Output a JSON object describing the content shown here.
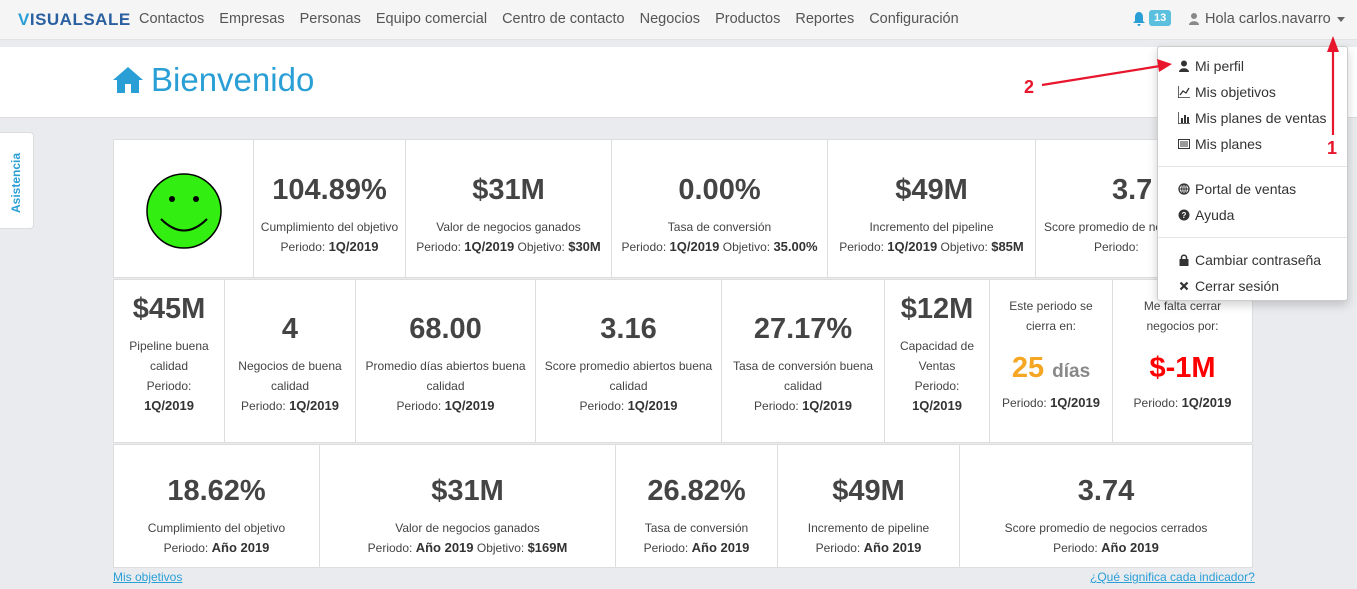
{
  "navbar": {
    "logo_v": "V",
    "logo_rest": "ISUALSALE",
    "items": [
      "Contactos",
      "Empresas",
      "Personas",
      "Equipo comercial",
      "Centro de contacto",
      "Negocios",
      "Productos",
      "Reportes",
      "Configuración"
    ],
    "notification_count": "13",
    "user_greeting": "Hola carlos.navarro"
  },
  "page": {
    "title": "Bienvenido",
    "side_tab": "Asistencia"
  },
  "row1": [
    {
      "value": "104.89%",
      "label": "Cumplimiento del objetivo",
      "period_label": "Periodo:",
      "period": "1Q/2019",
      "target_label": "",
      "target": ""
    },
    {
      "value": "$31M",
      "label": "Valor de negocios ganados",
      "period_label": "Periodo:",
      "period": "1Q/2019",
      "target_label": "Objetivo:",
      "target": "$30M"
    },
    {
      "value": "0.00%",
      "label": "Tasa de conversión",
      "period_label": "Periodo:",
      "period": "1Q/2019",
      "target_label": "Objetivo:",
      "target": "35.00%"
    },
    {
      "value": "$49M",
      "label": "Incremento del pipeline",
      "period_label": "Periodo:",
      "period": "1Q/2019",
      "target_label": "Objetivo:",
      "target": "$85M"
    },
    {
      "value": "3.7",
      "label": "Score promedio de ne",
      "period_label": "Periodo:",
      "period": "",
      "target_label": "",
      "target": ""
    }
  ],
  "row2": [
    {
      "value": "$45M",
      "label1": "Pipeline buena",
      "label2": "calidad",
      "period_label": "Periodo:",
      "period": "1Q/2019"
    },
    {
      "value": "4",
      "label1": "Negocios de buena",
      "label2": "calidad",
      "period_label": "Periodo:",
      "period": "1Q/2019"
    },
    {
      "value": "68.00",
      "label1": "Promedio días abiertos buena",
      "label2": "calidad",
      "period_label": "Periodo:",
      "period": "1Q/2019"
    },
    {
      "value": "3.16",
      "label1": "Score promedio abiertos buena",
      "label2": "calidad",
      "period_label": "Periodo:",
      "period": "1Q/2019"
    },
    {
      "value": "27.17%",
      "label1": "Tasa de conversión buena",
      "label2": "calidad",
      "period_label": "Periodo:",
      "period": "1Q/2019"
    },
    {
      "value": "$12M",
      "label1": "Capacidad de",
      "label2": "Ventas",
      "period_label": "Periodo:",
      "period": "1Q/2019"
    },
    {
      "value": "25",
      "value_suffix": "días",
      "label1": "Este periodo se",
      "label2": "cierra en:",
      "period_label": "Periodo:",
      "period": "1Q/2019"
    },
    {
      "value": "$-1M",
      "label1": "Me falta cerrar",
      "label2": "negocios por:",
      "period_label": "Periodo:",
      "period": "1Q/2019"
    }
  ],
  "row3": [
    {
      "value": "18.62%",
      "label": "Cumplimiento del objetivo",
      "period_label": "Periodo:",
      "period": "Año 2019",
      "target_label": "",
      "target": ""
    },
    {
      "value": "$31M",
      "label": "Valor de negocios ganados",
      "period_label": "Periodo:",
      "period": "Año 2019",
      "target_label": "Objetivo:",
      "target": "$169M"
    },
    {
      "value": "26.82%",
      "label": "Tasa de conversión",
      "period_label": "Periodo:",
      "period": "Año 2019",
      "target_label": "",
      "target": ""
    },
    {
      "value": "$49M",
      "label": "Incremento de pipeline",
      "period_label": "Periodo:",
      "period": "Año 2019",
      "target_label": "",
      "target": ""
    },
    {
      "value": "3.74",
      "label": "Score promedio de negocios cerrados",
      "period_label": "Periodo:",
      "period": "Año 2019",
      "target_label": "",
      "target": ""
    }
  ],
  "links": {
    "left": "Mis objetivos",
    "right": "¿Qué significa cada indicador?"
  },
  "dropdown": {
    "items": [
      "Mi perfil",
      "Mis objetivos",
      "Mis planes de ventas",
      "Mis planes",
      "Portal de ventas",
      "Ayuda",
      "Cambiar contraseña",
      "Cerrar sesión"
    ]
  },
  "annotations": {
    "one": "1",
    "two": "2"
  },
  "colors": {
    "accent": "#2a9fd6",
    "orange": "#f5a623",
    "red": "#ff0000",
    "smiley": "#33ee11",
    "annotation": "#e8162c"
  }
}
